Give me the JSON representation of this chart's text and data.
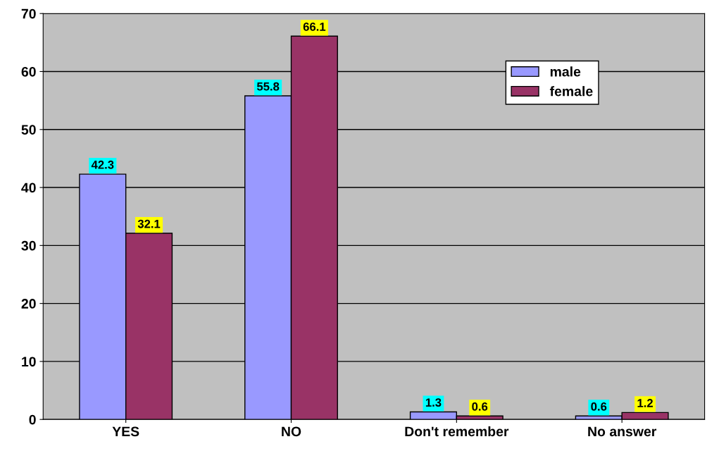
{
  "chart_data": {
    "type": "bar",
    "categories": [
      "YES",
      "NO",
      "Don't remember",
      "No answer"
    ],
    "series": [
      {
        "name": "male",
        "color": "#9999ff",
        "values": [
          42.3,
          55.8,
          1.3,
          0.6
        ]
      },
      {
        "name": "female",
        "color": "#993366",
        "values": [
          32.1,
          66.1,
          0.6,
          1.2
        ]
      }
    ],
    "ylim": [
      0,
      70
    ],
    "yticks": [
      0,
      10,
      20,
      30,
      40,
      50,
      60,
      70
    ],
    "grid": "y",
    "legend": "top right",
    "data_labels": true
  }
}
